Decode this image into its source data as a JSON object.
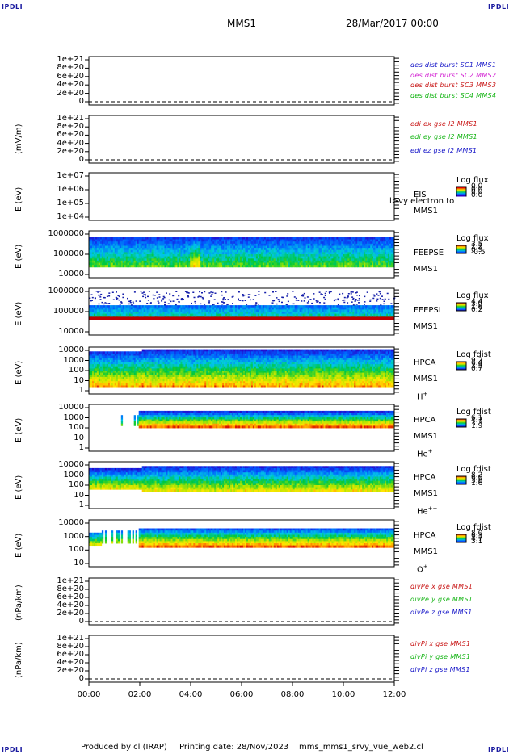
{
  "corner_label": "IPDLI",
  "header": {
    "mission": "MMS1",
    "date": "28/Mar/2017 00:00"
  },
  "footer": {
    "produced_by": "Produced by cl (IRAP)",
    "printing_date": "Printing date: 28/Nov/2023",
    "script": "mms_mms1_srvy_vue_web2.cl"
  },
  "x_axis": {
    "ticks": [
      "00:00",
      "02:00",
      "04:00",
      "06:00",
      "08:00",
      "10:00",
      "12:00"
    ]
  },
  "panels": [
    {
      "id": "p1",
      "ylabel": "",
      "ticks": [
        "1e+21",
        "8e+20",
        "6e+20",
        "4e+20",
        "2e+20",
        "0"
      ],
      "legend": [
        {
          "text": "des dist burst SC1 MMS1",
          "color": "#1515c8"
        },
        {
          "text": "des dist burst SC2 MMS2",
          "color": "#d21ed2"
        },
        {
          "text": "des dist burst SC3 MMS3",
          "color": "#c81414"
        },
        {
          "text": "des dist burst SC4 MMS4",
          "color": "#14b414"
        }
      ]
    },
    {
      "id": "p2",
      "ylabel": "(mV/m)",
      "ticks": [
        "1e+21",
        "8e+20",
        "6e+20",
        "4e+20",
        "2e+20",
        "0"
      ],
      "legend": [
        {
          "text": "edi ex gse l2 MMS1",
          "color": "#c81414"
        },
        {
          "text": "edi ey gse l2 MMS1",
          "color": "#14b414"
        },
        {
          "text": "edi ez gse l2 MMS1",
          "color": "#1515c8"
        }
      ]
    },
    {
      "id": "p3",
      "ylabel": "E (eV)",
      "ticks": [
        "1e+07",
        "1e+06",
        "1e+05",
        "1e+04"
      ],
      "side": [
        "EIS",
        "MMS1"
      ],
      "overlap_text": "l>vy electron to",
      "cb_title": "Log flux",
      "cb_values": [
        "0.0",
        "0.0",
        "0.0",
        "0.0"
      ]
    },
    {
      "id": "p4",
      "ylabel": "E (eV)",
      "ticks": [
        "1000000",
        "100000",
        "10000"
      ],
      "side": [
        "FEEPSE",
        "MMS1"
      ],
      "cb_title": "Log flux",
      "cb_values": [
        "3.5",
        "2.2",
        "0.9",
        "-0.5"
      ]
    },
    {
      "id": "p5",
      "ylabel": "E (eV)",
      "ticks": [
        "1000000",
        "100000",
        "10000"
      ],
      "side": [
        "FEEPSI",
        "MMS1"
      ],
      "cb_title": "Log flux",
      "cb_values": [
        "4.4",
        "3.0",
        "1.6",
        "0.2"
      ]
    },
    {
      "id": "p6",
      "ylabel": "E (eV)",
      "ticks": [
        "10000",
        "1000",
        "100",
        "10",
        "1"
      ],
      "side": [
        "HPCA",
        "MMS1"
      ],
      "species": "H",
      "charge": "+",
      "cb_title": "Log fdist",
      "cb_values": [
        "9.2",
        "6.4",
        "3.5",
        "0.7"
      ]
    },
    {
      "id": "p7",
      "ylabel": "E (eV)",
      "ticks": [
        "10000",
        "1000",
        "100",
        "10",
        "1"
      ],
      "side": [
        "HPCA",
        "MMS1"
      ],
      "species": "He",
      "charge": "+",
      "cb_title": "Log fdist",
      "cb_values": [
        "6.1",
        "4.7",
        "3.3",
        "1.9"
      ]
    },
    {
      "id": "p8",
      "ylabel": "E (eV)",
      "ticks": [
        "10000",
        "1000",
        "100",
        "10",
        "1"
      ],
      "side": [
        "HPCA",
        "MMS1"
      ],
      "species": "He",
      "charge": "++",
      "cb_title": "Log fdist",
      "cb_values": [
        "8.2",
        "6.0",
        "3.8",
        "1.6"
      ]
    },
    {
      "id": "p9",
      "ylabel": "E (eV)",
      "ticks": [
        "10000",
        "1000",
        "100",
        "10"
      ],
      "side": [
        "HPCA",
        "MMS1"
      ],
      "species": "O",
      "charge": "+",
      "cb_title": "Log fdist",
      "cb_values": [
        "8.0",
        "6.3",
        "4.7",
        "3.1"
      ]
    },
    {
      "id": "p10",
      "ylabel": "(nPa/km)",
      "ticks": [
        "1e+21",
        "8e+20",
        "6e+20",
        "4e+20",
        "2e+20",
        "0"
      ],
      "legend": [
        {
          "text": "divPe x gse MMS1",
          "color": "#c81414"
        },
        {
          "text": "divPe y gse MMS1",
          "color": "#14b414"
        },
        {
          "text": "divPe z gse MMS1",
          "color": "#1515c8"
        }
      ]
    },
    {
      "id": "p11",
      "ylabel": "(nPa/km)",
      "ticks": [
        "1e+21",
        "8e+20",
        "6e+20",
        "4e+20",
        "2e+20",
        "0"
      ],
      "legend": [
        {
          "text": "divPi x gse MMS1",
          "color": "#c81414"
        },
        {
          "text": "divPi y gse MMS1",
          "color": "#14b414"
        },
        {
          "text": "divPi z gse MMS1",
          "color": "#1515c8"
        }
      ]
    }
  ],
  "chart_data": {
    "type": "heatmap",
    "x_unit": "hours UT",
    "xlim": [
      0,
      12
    ],
    "x_ticks": [
      "00:00",
      "02:00",
      "04:00",
      "06:00",
      "08:00",
      "10:00",
      "12:00"
    ],
    "series": [
      {
        "name": "FEEPSE",
        "colorbar": [
          -0.5,
          3.5
        ]
      },
      {
        "name": "FEEPSI",
        "colorbar": [
          0.2,
          4.4
        ]
      },
      {
        "name": "HPCA",
        "colorbar": [
          0.7,
          9.2
        ]
      },
      {
        "name": "HPCA",
        "colorbar": [
          1.9,
          6.1
        ]
      },
      {
        "name": "HPCA",
        "colorbar": [
          1.6,
          8.2
        ]
      },
      {
        "name": "HPCA",
        "colorbar": [
          3.1,
          8.0
        ]
      }
    ]
  }
}
